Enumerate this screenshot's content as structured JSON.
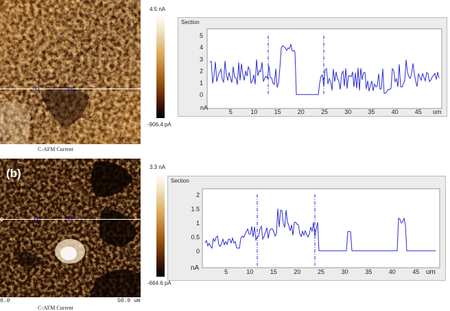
{
  "panel_a": {
    "scale_max": "4.5 nA",
    "scale_min": "-906.4 pA",
    "x_start": "0.0",
    "x_end": "50.0 um",
    "caption": "C-AFM Current",
    "section": {
      "title": "Section",
      "y_unit": "nA",
      "x_unit": "um",
      "y_ticks": [
        "5",
        "4",
        "3",
        "2",
        "1",
        "0"
      ],
      "x_ticks": [
        "5",
        "10",
        "15",
        "20",
        "25",
        "30",
        "35",
        "40",
        "45"
      ]
    }
  },
  "panel_b": {
    "label": "(b)",
    "scale_max": "3.3 nA",
    "scale_min": "-664.6 pA",
    "x_start": "0.0",
    "x_end": "50.0 um",
    "caption": "C-AFM Current",
    "section": {
      "title": "Section",
      "y_unit": "nA",
      "x_unit": "um",
      "y_ticks": [
        "2",
        "1.5",
        "1",
        "0.5",
        "0"
      ],
      "x_ticks": [
        "5",
        "10",
        "15",
        "20",
        "25",
        "30",
        "35",
        "40",
        "45"
      ]
    }
  },
  "colors": {
    "trace": "#2a2ad6",
    "marker": "#3333cc",
    "afm_dark": "#1a0800",
    "afm_bright": "#ffffff"
  }
}
